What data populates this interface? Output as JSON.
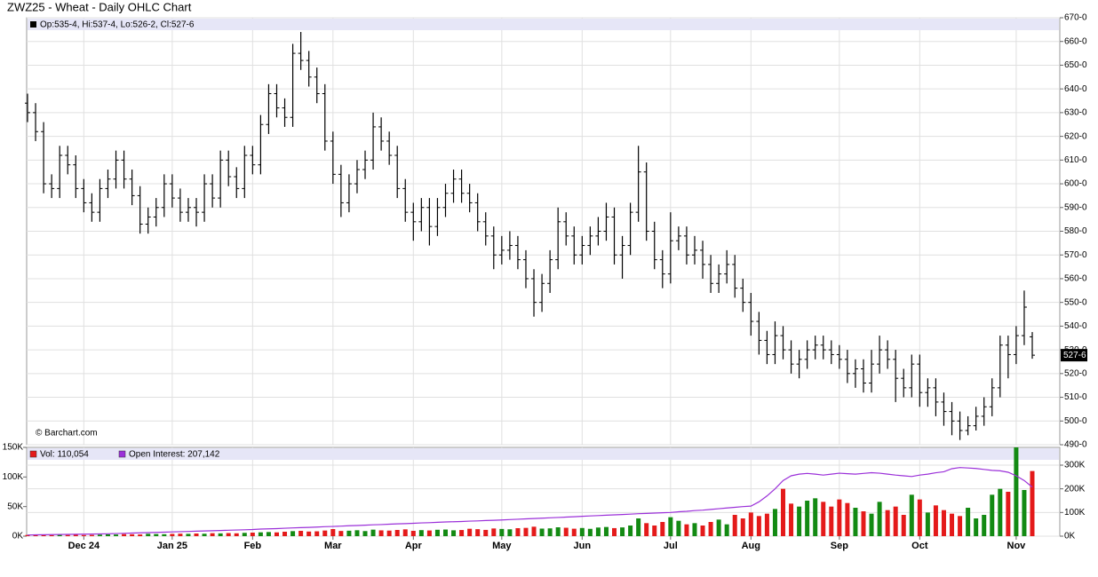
{
  "chart_data": [
    {
      "type": "ohlc",
      "title": "ZWZ25 - Wheat - Daily OHLC Chart",
      "header": "Op:535-4, Hi:537-4, Lo:526-2, Cl:527-6",
      "source": "© Barchart.com",
      "ylim": [
        490,
        670
      ],
      "yticks": [
        {
          "value": 490,
          "label": "490-0"
        },
        {
          "value": 500,
          "label": "500-0"
        },
        {
          "value": 510,
          "label": "510-0"
        },
        {
          "value": 520,
          "label": "520-0"
        },
        {
          "value": 530,
          "label": "530-0"
        },
        {
          "value": 540,
          "label": "540-0"
        },
        {
          "value": 550,
          "label": "550-0"
        },
        {
          "value": 560,
          "label": "560-0"
        },
        {
          "value": 570,
          "label": "570-0"
        },
        {
          "value": 580,
          "label": "580-0"
        },
        {
          "value": 590,
          "label": "590-0"
        },
        {
          "value": 600,
          "label": "600-0"
        },
        {
          "value": 610,
          "label": "610-0"
        },
        {
          "value": 620,
          "label": "620-0"
        },
        {
          "value": 630,
          "label": "630-0"
        },
        {
          "value": 640,
          "label": "640-0"
        },
        {
          "value": 650,
          "label": "650-0"
        },
        {
          "value": 660,
          "label": "660-0"
        },
        {
          "value": 670,
          "label": "670-0"
        }
      ],
      "last_label": {
        "value": 527.75,
        "label": "527-6"
      },
      "color": "#000000",
      "grid": true,
      "open": [
        634,
        630,
        622,
        600,
        598,
        612,
        608,
        598,
        592,
        588,
        598,
        602,
        610,
        602,
        595,
        583,
        586,
        590,
        600,
        594,
        588,
        590,
        588,
        600,
        594,
        610,
        603,
        598,
        612,
        608,
        625,
        638,
        632,
        628,
        655,
        652,
        645,
        638,
        618,
        604,
        592,
        600,
        606,
        610,
        624,
        618,
        612,
        598,
        588,
        584,
        590,
        582,
        590,
        596,
        602,
        596,
        592,
        584,
        578,
        570,
        572,
        574,
        568,
        560,
        550,
        558,
        568,
        584,
        578,
        570,
        574,
        578,
        580,
        586,
        570,
        574,
        588,
        605,
        580,
        568,
        562,
        576,
        578,
        570,
        572,
        566,
        558,
        562,
        566,
        556,
        550,
        542,
        534,
        528,
        536,
        530,
        524,
        526,
        530,
        532,
        530,
        528,
        526,
        520,
        522,
        516,
        524,
        530,
        526,
        518,
        514,
        524,
        512,
        514,
        508,
        504,
        500,
        496,
        498,
        502,
        506,
        514,
        532,
        528,
        536,
        535.5
      ],
      "high": [
        638,
        634,
        626,
        604,
        616,
        616,
        612,
        602,
        596,
        602,
        606,
        614,
        614,
        606,
        599,
        590,
        594,
        604,
        604,
        598,
        594,
        594,
        604,
        604,
        614,
        614,
        607,
        616,
        616,
        629,
        642,
        642,
        636,
        659,
        664,
        656,
        649,
        642,
        622,
        608,
        604,
        610,
        614,
        630,
        628,
        622,
        616,
        602,
        592,
        594,
        594,
        594,
        600,
        606,
        606,
        600,
        596,
        588,
        582,
        578,
        580,
        578,
        572,
        564,
        562,
        572,
        590,
        588,
        582,
        578,
        582,
        586,
        592,
        590,
        578,
        592,
        616,
        609,
        584,
        572,
        588,
        582,
        582,
        578,
        576,
        570,
        566,
        572,
        570,
        560,
        554,
        546,
        538,
        542,
        540,
        534,
        530,
        534,
        536,
        536,
        534,
        532,
        530,
        526,
        526,
        530,
        536,
        534,
        530,
        522,
        528,
        528,
        518,
        518,
        512,
        508,
        504,
        502,
        506,
        510,
        518,
        536,
        536,
        540,
        555,
        537.5
      ],
      "low": [
        626,
        618,
        596,
        594,
        594,
        604,
        594,
        588,
        584,
        584,
        594,
        598,
        598,
        591,
        579,
        579,
        582,
        586,
        590,
        584,
        584,
        582,
        584,
        590,
        590,
        599,
        594,
        594,
        604,
        604,
        621,
        628,
        624,
        624,
        648,
        641,
        634,
        614,
        600,
        586,
        588,
        596,
        602,
        606,
        614,
        608,
        594,
        584,
        576,
        580,
        574,
        578,
        586,
        592,
        592,
        588,
        580,
        574,
        564,
        566,
        568,
        564,
        556,
        544,
        546,
        554,
        564,
        574,
        566,
        566,
        570,
        574,
        576,
        566,
        560,
        570,
        584,
        576,
        564,
        556,
        558,
        572,
        566,
        566,
        560,
        554,
        554,
        558,
        552,
        546,
        536,
        528,
        524,
        524,
        526,
        520,
        518,
        522,
        526,
        526,
        524,
        522,
        516,
        514,
        512,
        512,
        520,
        522,
        508,
        510,
        510,
        506,
        506,
        502,
        498,
        494,
        492,
        494,
        496,
        498,
        502,
        510,
        518,
        524,
        532,
        526.25
      ],
      "close": [
        630,
        622,
        600,
        598,
        612,
        608,
        598,
        592,
        588,
        598,
        602,
        610,
        602,
        595,
        583,
        586,
        590,
        600,
        594,
        588,
        590,
        588,
        600,
        594,
        610,
        603,
        598,
        612,
        608,
        625,
        638,
        632,
        628,
        655,
        652,
        645,
        638,
        618,
        604,
        592,
        600,
        606,
        610,
        624,
        618,
        612,
        598,
        588,
        584,
        590,
        582,
        590,
        596,
        602,
        596,
        592,
        584,
        578,
        570,
        572,
        574,
        568,
        560,
        550,
        558,
        568,
        584,
        578,
        570,
        574,
        578,
        580,
        586,
        570,
        574,
        588,
        605,
        580,
        568,
        562,
        576,
        578,
        570,
        572,
        566,
        558,
        562,
        566,
        556,
        550,
        542,
        534,
        528,
        536,
        530,
        524,
        526,
        530,
        532,
        530,
        528,
        526,
        520,
        522,
        516,
        524,
        530,
        526,
        518,
        514,
        524,
        512,
        514,
        508,
        504,
        500,
        496,
        498,
        502,
        506,
        514,
        532,
        528,
        536,
        548,
        527.75
      ]
    },
    {
      "type": "bar",
      "categories": [
        null,
        null,
        null,
        null,
        null,
        null,
        null,
        "Dec 24",
        null,
        null,
        null,
        null,
        null,
        null,
        null,
        null,
        null,
        null,
        "Jan 25",
        null,
        null,
        null,
        null,
        null,
        null,
        null,
        null,
        null,
        "Feb",
        null,
        null,
        null,
        null,
        null,
        null,
        null,
        null,
        null,
        "Mar",
        null,
        null,
        null,
        null,
        null,
        null,
        null,
        null,
        null,
        "Apr",
        null,
        null,
        null,
        null,
        null,
        null,
        null,
        null,
        null,
        null,
        "May",
        null,
        null,
        null,
        null,
        null,
        null,
        null,
        null,
        null,
        "Jun",
        null,
        null,
        null,
        null,
        null,
        null,
        null,
        null,
        null,
        null,
        "Jul",
        null,
        null,
        null,
        null,
        null,
        null,
        null,
        null,
        null,
        "Aug",
        null,
        null,
        null,
        null,
        null,
        null,
        null,
        null,
        null,
        null,
        "Sep",
        null,
        null,
        null,
        null,
        null,
        null,
        null,
        null,
        null,
        "Oct",
        null,
        null,
        null,
        null,
        null,
        null,
        null,
        null,
        null,
        null,
        null,
        "Nov",
        null,
        null
      ],
      "ylim": [
        0,
        150000
      ],
      "yticks": [
        {
          "value": 0,
          "label": "0K"
        },
        {
          "value": 50000,
          "label": "50K"
        },
        {
          "value": 100000,
          "label": "100K"
        },
        {
          "value": 150000,
          "label": "150K"
        }
      ],
      "y2lim": [
        0,
        375000
      ],
      "y2ticks": [
        {
          "value": 0,
          "label": "0K"
        },
        {
          "value": 100000,
          "label": "100K"
        },
        {
          "value": 200000,
          "label": "200K"
        },
        {
          "value": 300000,
          "label": "300K"
        }
      ],
      "up_color": "#138a13",
      "down_color": "#e41a1a",
      "grid": true,
      "series": [
        {
          "name": "Vol: 110,054",
          "color": "#e41a1a",
          "values": [
            2000,
            1500,
            2500,
            1800,
            2200,
            2000,
            2400,
            1900,
            2100,
            2600,
            3000,
            2800,
            3500,
            3200,
            2900,
            4000,
            3600,
            3300,
            3800,
            4200,
            3900,
            4500,
            4100,
            5000,
            4700,
            5200,
            4800,
            5600,
            6000,
            6500,
            7000,
            6400,
            7500,
            8500,
            9000,
            7800,
            8200,
            9500,
            12000,
            8800,
            9200,
            10000,
            8600,
            11000,
            9800,
            9400,
            10500,
            11500,
            9000,
            10200,
            9600,
            10800,
            11200,
            9900,
            10400,
            12500,
            11800,
            10600,
            13000,
            12200,
            11600,
            13500,
            14000,
            16000,
            12800,
            13200,
            15000,
            14200,
            12600,
            13800,
            12400,
            14600,
            15500,
            13600,
            14800,
            18000,
            30000,
            22000,
            18000,
            24000,
            32000,
            26000,
            20000,
            22000,
            18000,
            24000,
            28000,
            20000,
            36000,
            30000,
            40000,
            34000,
            38000,
            46000,
            80000,
            55000,
            50000,
            60000,
            64000,
            58000,
            50000,
            62000,
            56000,
            48000,
            42000,
            38000,
            58000,
            44000,
            50000,
            36000,
            70000,
            62000,
            40000,
            52000,
            44000,
            38000,
            34000,
            48000,
            30000,
            36000,
            70000,
            80000,
            75000,
            150000,
            78000,
            110054
          ]
        },
        {
          "name": "Open Interest: 207,142",
          "color": "#9b30d9",
          "axis": "y2",
          "values": [
            5000,
            5500,
            6000,
            6500,
            7000,
            7500,
            8000,
            8500,
            9000,
            9500,
            10000,
            11000,
            12000,
            13000,
            14000,
            15000,
            16000,
            17000,
            18000,
            19000,
            20000,
            21000,
            22000,
            23000,
            24000,
            25000,
            26000,
            27000,
            28000,
            30000,
            31000,
            32000,
            33500,
            35000,
            36000,
            37000,
            38500,
            40000,
            41000,
            42500,
            44000,
            45000,
            46500,
            48000,
            49000,
            50500,
            52000,
            53000,
            54500,
            56000,
            57000,
            58500,
            60000,
            61000,
            62000,
            63500,
            64500,
            66000,
            67000,
            68500,
            70000,
            71500,
            73000,
            74500,
            76000,
            77500,
            79000,
            80500,
            82000,
            84000,
            85500,
            87000,
            88500,
            90000,
            91500,
            93000,
            95000,
            96000,
            97500,
            99000,
            100000,
            103000,
            105000,
            108000,
            110000,
            113000,
            116000,
            119000,
            122000,
            125000,
            127000,
            145000,
            170000,
            200000,
            235000,
            255000,
            262000,
            265000,
            262000,
            258000,
            262000,
            266000,
            264000,
            262000,
            265000,
            268000,
            266000,
            262000,
            258000,
            255000,
            252000,
            258000,
            262000,
            268000,
            272000,
            285000,
            290000,
            288000,
            286000,
            282000,
            278000,
            276000,
            270000,
            255000,
            235000,
            207142
          ]
        }
      ]
    }
  ]
}
